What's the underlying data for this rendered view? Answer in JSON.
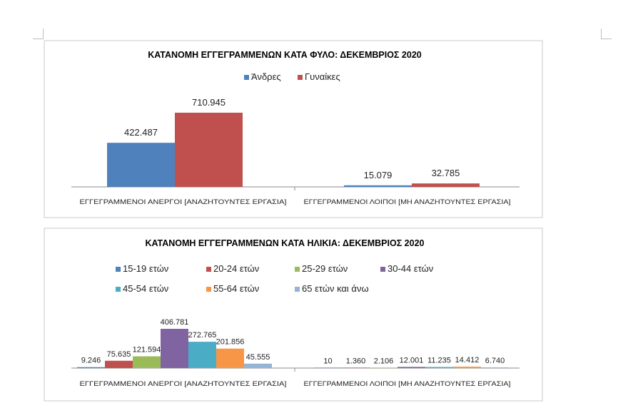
{
  "chart_data": [
    {
      "type": "bar",
      "title": "ΚΑΤΑΝΟΜΗ ΕΓΓΕΓΡΑΜΜΕΝΩΝ ΚΑΤΑ ΦΥΛΟ: ΔΕΚΕΜΒΡΙΟΣ  2020",
      "categories": [
        "ΕΓΓΕΓΡΑΜΜΕΝΟΙ ΑΝΕΡΓΟΙ [ΑΝΑΖΗΤΟΥΝΤΕΣ ΕΡΓΑΣΙΑ]",
        "ΕΓΓΕΓΡΑΜΜΕΝΟΙ ΛΟΙΠΟΙ [ΜΗ ΑΝΑΖΗΤΟΥΝΤΕΣ ΕΡΓΑΣΙΑ]"
      ],
      "series": [
        {
          "name": "Άνδρες",
          "color": "#4f81bd",
          "values": [
            422487,
            15079
          ],
          "labels": [
            "422.487",
            "15.079"
          ]
        },
        {
          "name": "Γυναίκες",
          "color": "#c0504d",
          "values": [
            710945,
            32785
          ],
          "labels": [
            "710.945",
            "32.785"
          ]
        }
      ],
      "legend": "top",
      "grid": false
    },
    {
      "type": "bar",
      "title": "ΚΑΤΑΝΟΜΗ ΕΓΓΕΓΡΑΜΜΕΝΩΝ ΚΑΤΑ ΗΛΙΚΙΑ: ΔΕΚΕΜΒΡΙΟΣ 2020",
      "categories": [
        "ΕΓΓΕΓΡΑΜΜΕΝΟΙ ΑΝΕΡΓΟΙ [ΑΝΑΖΗΤΟΥΝΤΕΣ ΕΡΓΑΣΙΑ]",
        "ΕΓΓΕΓΡΑΜΜΕΝΟΙ ΛΟΙΠΟΙ [ΜΗ ΑΝΑΖΗΤΟΥΝΤΕΣ ΕΡΓΑΣΙΑ]"
      ],
      "series": [
        {
          "name": "15-19 ετών",
          "color": "#4f81bd",
          "values": [
            9246,
            10
          ],
          "labels": [
            "9.246",
            "10"
          ]
        },
        {
          "name": "20-24 ετών",
          "color": "#c0504d",
          "values": [
            75635,
            1360
          ],
          "labels": [
            "75.635",
            "1.360"
          ]
        },
        {
          "name": "25-29 ετών",
          "color": "#9bbb59",
          "values": [
            121594,
            2106
          ],
          "labels": [
            "121.594",
            "2.106"
          ]
        },
        {
          "name": "30-44 ετών",
          "color": "#8064a2",
          "values": [
            406781,
            12001
          ],
          "labels": [
            "406.781",
            "12.001"
          ]
        },
        {
          "name": "45-54 ετών",
          "color": "#4bacc6",
          "values": [
            272765,
            11235
          ],
          "labels": [
            "272.765",
            "11.235"
          ]
        },
        {
          "name": "55-64 ετών",
          "color": "#f79646",
          "values": [
            201856,
            14412
          ],
          "labels": [
            "201.856",
            "14.412"
          ]
        },
        {
          "name": "65 ετών και άνω",
          "color": "#95b3d7",
          "values": [
            45555,
            6740
          ],
          "labels": [
            "45.555",
            "6.740"
          ]
        }
      ],
      "legend": "top",
      "grid": false
    }
  ]
}
